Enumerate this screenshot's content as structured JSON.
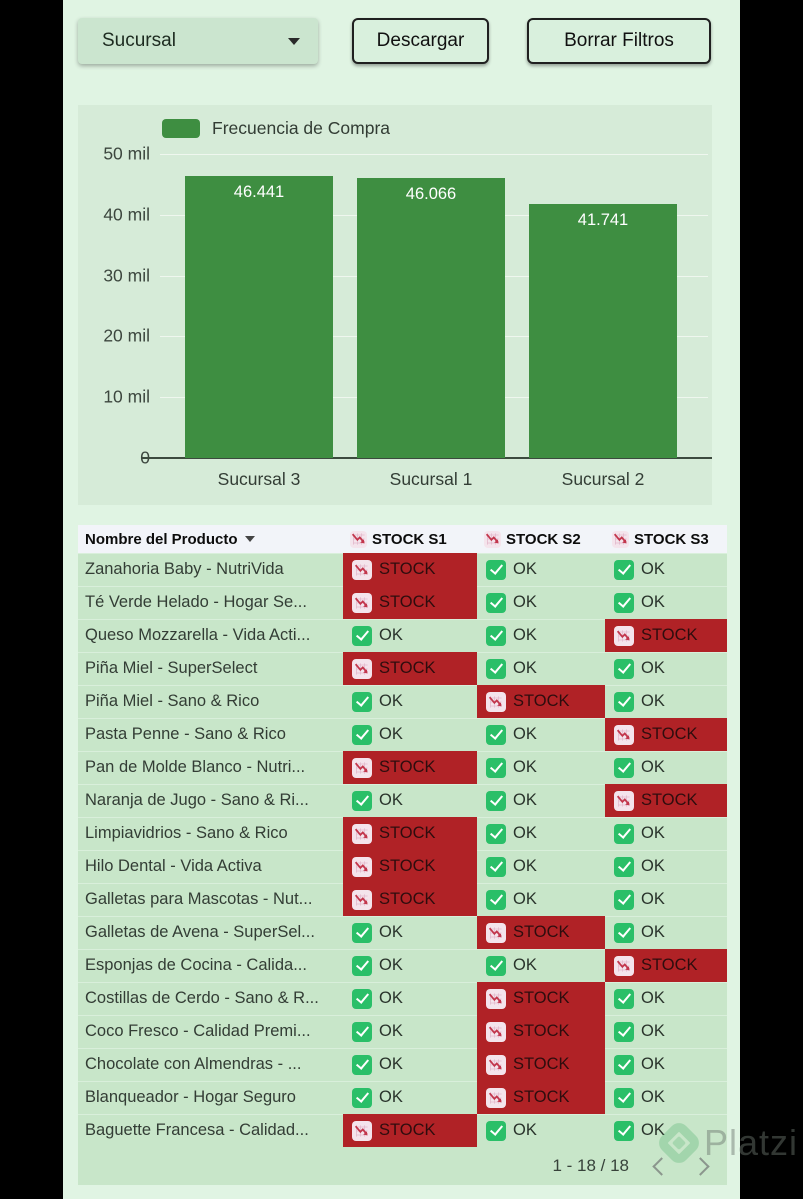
{
  "toolbar": {
    "filter_label": "Sucursal",
    "download_label": "Descargar",
    "clear_filters_label": "Borrar Filtros"
  },
  "chart_data": {
    "type": "bar",
    "title": "",
    "legend_label": "Frecuencia de Compra",
    "legend_position": "top",
    "categories": [
      "Sucursal 3",
      "Sucursal 1",
      "Sucursal 2"
    ],
    "values": [
      46441,
      46066,
      41741
    ],
    "value_labels": [
      "46.441",
      "46.066",
      "41.741"
    ],
    "xlabel": "",
    "ylabel": "",
    "ylim": [
      0,
      50000
    ],
    "grid": true,
    "bar_color": "#3e8e41",
    "yticks": [
      {
        "value": 0,
        "label": "0"
      },
      {
        "value": 10000,
        "label": "10 mil"
      },
      {
        "value": 20000,
        "label": "20 mil"
      },
      {
        "value": 30000,
        "label": "30 mil"
      },
      {
        "value": 40000,
        "label": "40 mil"
      },
      {
        "value": 50000,
        "label": "50 mil"
      }
    ]
  },
  "table": {
    "columns": [
      {
        "label": "Nombre del Producto",
        "icon": null
      },
      {
        "label": "STOCK S1",
        "icon": "chart-decreasing"
      },
      {
        "label": "STOCK S2",
        "icon": "chart-decreasing"
      },
      {
        "label": "STOCK S3",
        "icon": "chart-decreasing"
      }
    ],
    "rows": [
      {
        "name": "Zanahoria Baby - NutriVida",
        "s1": "STOCK",
        "s2": "OK",
        "s3": "OK"
      },
      {
        "name": "Té Verde Helado - Hogar Se...",
        "s1": "STOCK",
        "s2": "OK",
        "s3": "OK"
      },
      {
        "name": "Queso Mozzarella - Vida Acti...",
        "s1": "OK",
        "s2": "OK",
        "s3": "STOCK"
      },
      {
        "name": "Piña Miel - SuperSelect",
        "s1": "STOCK",
        "s2": "OK",
        "s3": "OK"
      },
      {
        "name": "Piña Miel - Sano & Rico",
        "s1": "OK",
        "s2": "STOCK",
        "s3": "OK"
      },
      {
        "name": "Pasta Penne - Sano & Rico",
        "s1": "OK",
        "s2": "OK",
        "s3": "STOCK"
      },
      {
        "name": "Pan de Molde Blanco - Nutri...",
        "s1": "STOCK",
        "s2": "OK",
        "s3": "OK"
      },
      {
        "name": "Naranja de Jugo - Sano & Ri...",
        "s1": "OK",
        "s2": "OK",
        "s3": "STOCK"
      },
      {
        "name": "Limpiavidrios - Sano & Rico",
        "s1": "STOCK",
        "s2": "OK",
        "s3": "OK"
      },
      {
        "name": "Hilo Dental - Vida Activa",
        "s1": "STOCK",
        "s2": "OK",
        "s3": "OK"
      },
      {
        "name": "Galletas para Mascotas - Nut...",
        "s1": "STOCK",
        "s2": "OK",
        "s3": "OK"
      },
      {
        "name": "Galletas de Avena - SuperSel...",
        "s1": "OK",
        "s2": "STOCK",
        "s3": "OK"
      },
      {
        "name": "Esponjas de Cocina - Calida...",
        "s1": "OK",
        "s2": "OK",
        "s3": "STOCK"
      },
      {
        "name": "Costillas de Cerdo - Sano & R...",
        "s1": "OK",
        "s2": "STOCK",
        "s3": "OK"
      },
      {
        "name": "Coco Fresco - Calidad Premi...",
        "s1": "OK",
        "s2": "STOCK",
        "s3": "OK"
      },
      {
        "name": "Chocolate con Almendras - ...",
        "s1": "OK",
        "s2": "STOCK",
        "s3": "OK"
      },
      {
        "name": "Blanqueador - Hogar Seguro",
        "s1": "OK",
        "s2": "STOCK",
        "s3": "OK"
      },
      {
        "name": "Baguette Francesa - Calidad...",
        "s1": "STOCK",
        "s2": "OK",
        "s3": "OK"
      }
    ],
    "status_icons": {
      "STOCK": "chart-decreasing-icon",
      "OK": "check-mark-icon"
    }
  },
  "pagination": {
    "range_label": "1 - 18 / 18"
  },
  "watermark": {
    "label": "Platzi"
  },
  "colors": {
    "page_bg": "#e0f4e3",
    "chart_panel_bg": "#d6ebd8",
    "bar_green": "#3e8e41",
    "row_green": "#c8e6c9",
    "stock_red": "#b02226",
    "header_bg": "#f2f4f9",
    "ok_icon_green": "#2abf68"
  }
}
